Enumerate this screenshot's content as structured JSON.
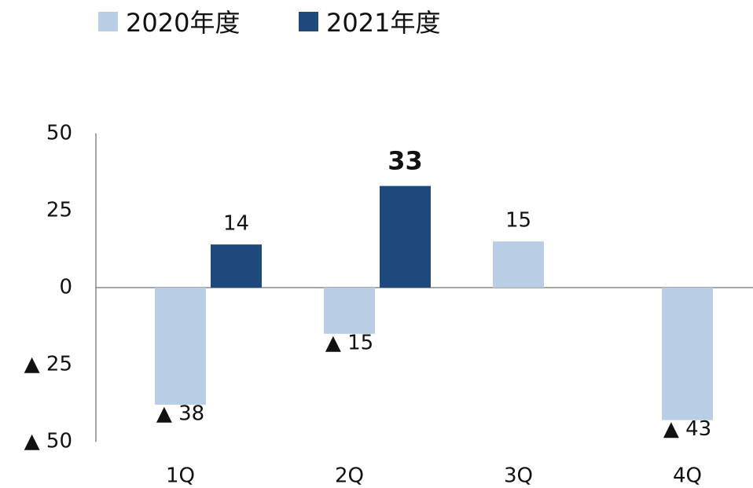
{
  "chart_data": {
    "type": "bar",
    "categories": [
      "1Q",
      "2Q",
      "3Q",
      "4Q"
    ],
    "series": [
      {
        "name": "2020年度",
        "color": "#b9cde5",
        "values": [
          -38,
          -15,
          15,
          -43
        ],
        "value_labels": [
          "▲ 38",
          "▲ 15",
          "15",
          "▲ 43"
        ]
      },
      {
        "name": "2021年度",
        "color": "#1f497d",
        "values": [
          14,
          33,
          null,
          null
        ],
        "value_labels": [
          "14",
          "33",
          null,
          null
        ]
      }
    ],
    "bold_label": {
      "series": 1,
      "index": 1
    },
    "ylim": [
      -50,
      50
    ],
    "yticks": [
      {
        "value": -50,
        "label": "▲ 50"
      },
      {
        "value": -25,
        "label": "▲ 25"
      },
      0,
      25,
      50
    ],
    "legend": "top",
    "grid": false
  }
}
